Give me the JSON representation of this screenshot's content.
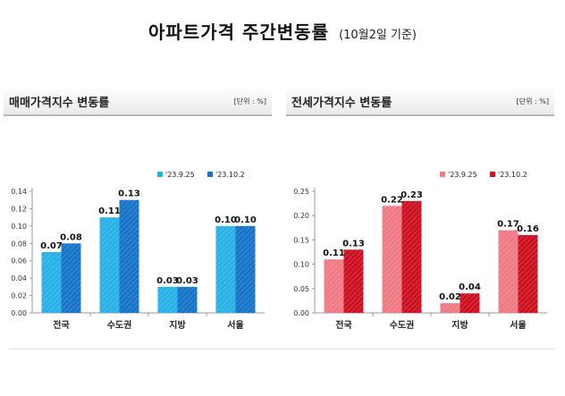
{
  "header": {
    "title": "아파트가격  주간변동률",
    "subtitle": "(10월2일 기준)"
  },
  "panels": {
    "sale": {
      "title": "매매가격지수 변동률",
      "unit": "[단위 : %]"
    },
    "jeonse": {
      "title": "전세가격지수 변동률",
      "unit": "[단위 : %]"
    }
  },
  "chart_data": [
    {
      "type": "bar",
      "title": "매매가격지수 변동률",
      "categories": [
        "전국",
        "수도권",
        "지방",
        "서울"
      ],
      "series": [
        {
          "name": "'23.9.25",
          "values": [
            0.07,
            0.11,
            0.03,
            0.1
          ],
          "color": "#27b2e6"
        },
        {
          "name": "'23.10.2",
          "values": [
            0.08,
            0.13,
            0.03,
            0.1
          ],
          "color": "#1673c8"
        }
      ],
      "ylim": [
        0,
        0.14
      ],
      "yticks": [
        0.0,
        0.02,
        0.04,
        0.06,
        0.08,
        0.1,
        0.12,
        0.14
      ],
      "tick_decimals": 2,
      "legend": "top-right",
      "grid": false
    },
    {
      "type": "bar",
      "title": "전세가격지수 변동률",
      "categories": [
        "전국",
        "수도권",
        "지방",
        "서울"
      ],
      "series": [
        {
          "name": "'23.9.25",
          "values": [
            0.11,
            0.22,
            0.02,
            0.17
          ],
          "color": "#f07a84"
        },
        {
          "name": "'23.10.2",
          "values": [
            0.13,
            0.23,
            0.04,
            0.16
          ],
          "color": "#cc1020"
        }
      ],
      "ylim": [
        0,
        0.25
      ],
      "yticks": [
        0.0,
        0.05,
        0.1,
        0.15,
        0.2,
        0.25
      ],
      "tick_decimals": 2,
      "legend": "top-right",
      "grid": false
    }
  ]
}
